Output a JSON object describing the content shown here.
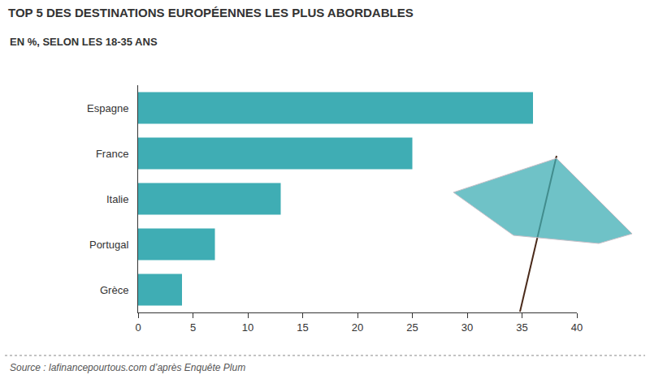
{
  "chart_data": {
    "type": "bar",
    "title": "TOP 5 DES DESTINATIONS EUROPÉENNES LES PLUS ABORDABLES",
    "subtitle": "EN %, SELON LES 18-35 ANS",
    "source": "Source : lafinancepourtous.com d’après Enquête Plum",
    "orientation": "horizontal",
    "categories": [
      "Espagne",
      "France",
      "Italie",
      "Portugal",
      "Grèce"
    ],
    "values": [
      36,
      25,
      13,
      7,
      4
    ],
    "color": "#3fadb4",
    "xlim": [
      0,
      40
    ],
    "xticks": [
      0,
      5,
      10,
      15,
      20,
      25,
      30,
      35,
      40
    ],
    "grid": false,
    "data_labels": false
  }
}
